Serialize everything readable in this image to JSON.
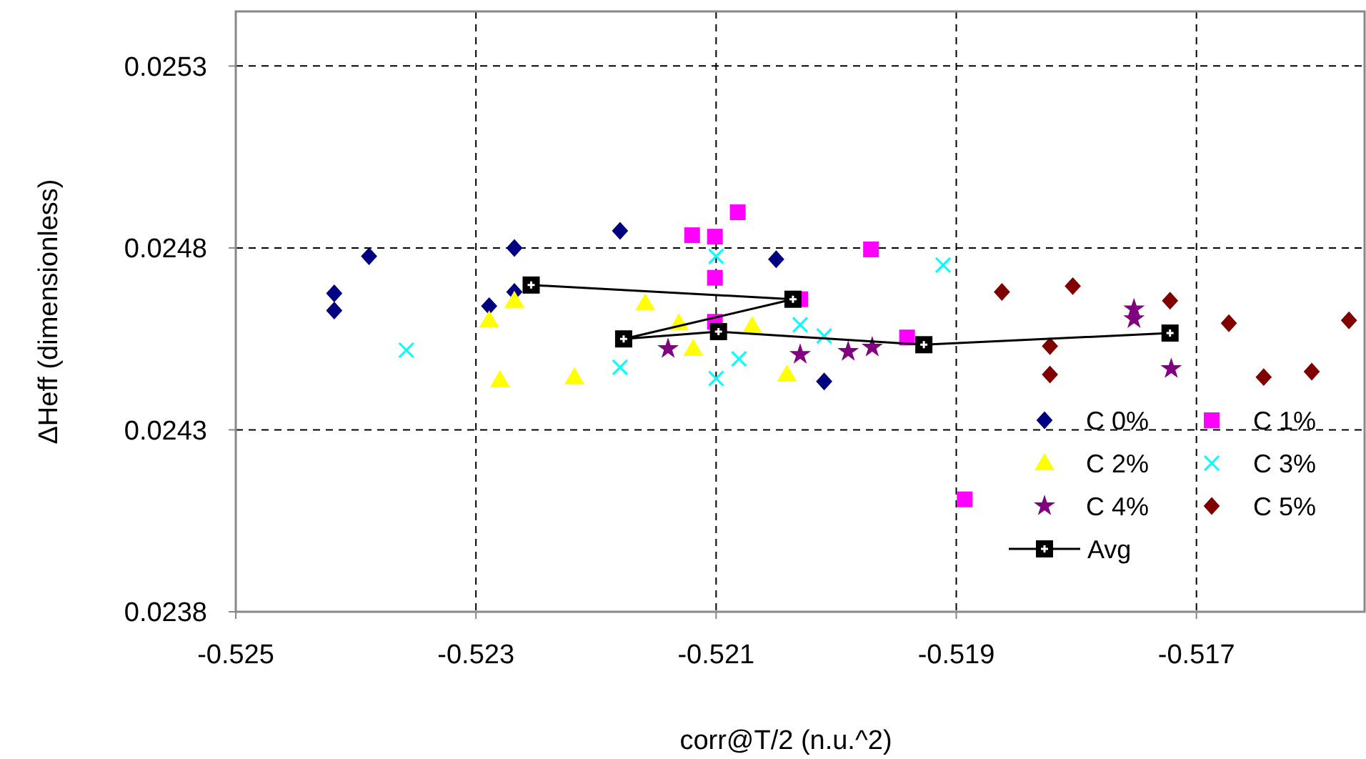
{
  "chart_data": {
    "type": "scatter",
    "xlabel": "corr@T/2 (n.u.^2)",
    "ylabel": "ΔHeff (dimensionless)",
    "xlim": [
      -0.525,
      -0.5156
    ],
    "xticks": [
      -0.525,
      -0.523,
      -0.521,
      -0.519,
      -0.517
    ],
    "ylim": [
      0.0238,
      0.02545
    ],
    "yticks": [
      0.0238,
      0.0243,
      0.0248,
      0.0253
    ],
    "grid": true,
    "legend": "bottom right",
    "series": [
      {
        "name": "C 0%",
        "color": "#000080",
        "marker": "diamond",
        "x": [
          -0.52418,
          -0.52418,
          -0.52389,
          -0.52268,
          -0.52268,
          -0.52289,
          -0.5218,
          -0.5205,
          -0.5201
        ],
        "values": [
          0.024675,
          0.024628,
          0.024777,
          0.0248,
          0.024679,
          0.02464,
          0.024847,
          0.024769,
          0.024433
        ]
      },
      {
        "name": "C 1%",
        "color": "#ff00ff",
        "marker": "square",
        "x": [
          -0.52082,
          -0.5212,
          -0.52101,
          -0.52101,
          -0.51971,
          -0.52101,
          -0.51941,
          -0.51893,
          -0.5203
        ],
        "values": [
          0.024898,
          0.024835,
          0.024831,
          0.024718,
          0.024796,
          0.024597,
          0.024554,
          0.024109,
          0.024659
        ]
      },
      {
        "name": "C 2%",
        "color": "#ffff00",
        "marker": "triangle",
        "x": [
          -0.52289,
          -0.52268,
          -0.5228,
          -0.52218,
          -0.52159,
          -0.52131,
          -0.52119,
          -0.5207,
          -0.52041
        ],
        "values": [
          0.024601,
          0.024655,
          0.024437,
          0.024445,
          0.024648,
          0.024593,
          0.024523,
          0.024585,
          0.024452
        ]
      },
      {
        "name": "C 3%",
        "color": "#00ffff",
        "marker": "cross",
        "x": [
          -0.52358,
          -0.5218,
          -0.521,
          -0.52081,
          -0.521,
          -0.5203,
          -0.5201,
          -0.51911
        ],
        "values": [
          0.024519,
          0.024472,
          0.024777,
          0.024495,
          0.024441,
          0.024589,
          0.024558,
          0.024753
        ]
      },
      {
        "name": "C 4%",
        "color": "#800080",
        "marker": "star",
        "x": [
          -0.5214,
          -0.5203,
          -0.5199,
          -0.5197,
          -0.51752,
          -0.51752,
          -0.51721
        ],
        "values": [
          0.024523,
          0.024507,
          0.024515,
          0.024527,
          0.024632,
          0.024605,
          0.024468
        ]
      },
      {
        "name": "C 5%",
        "color": "#800000",
        "marker": "diamond",
        "x": [
          -0.51862,
          -0.51803,
          -0.51722,
          -0.51822,
          -0.51822,
          -0.51673,
          -0.51644,
          -0.51604,
          -0.51573
        ],
        "values": [
          0.024679,
          0.024695,
          0.024655,
          0.02453,
          0.024452,
          0.024593,
          0.024445,
          0.02446,
          0.024601
        ]
      },
      {
        "name": "Avg",
        "type": "line",
        "color": "#000000",
        "marker": "square",
        "x": [
          -0.52254,
          -0.52036,
          -0.52177,
          -0.52098,
          -0.51927,
          -0.51722
        ],
        "values": [
          0.024698,
          0.024659,
          0.02455,
          0.02457,
          0.024534,
          0.024566
        ]
      }
    ]
  }
}
